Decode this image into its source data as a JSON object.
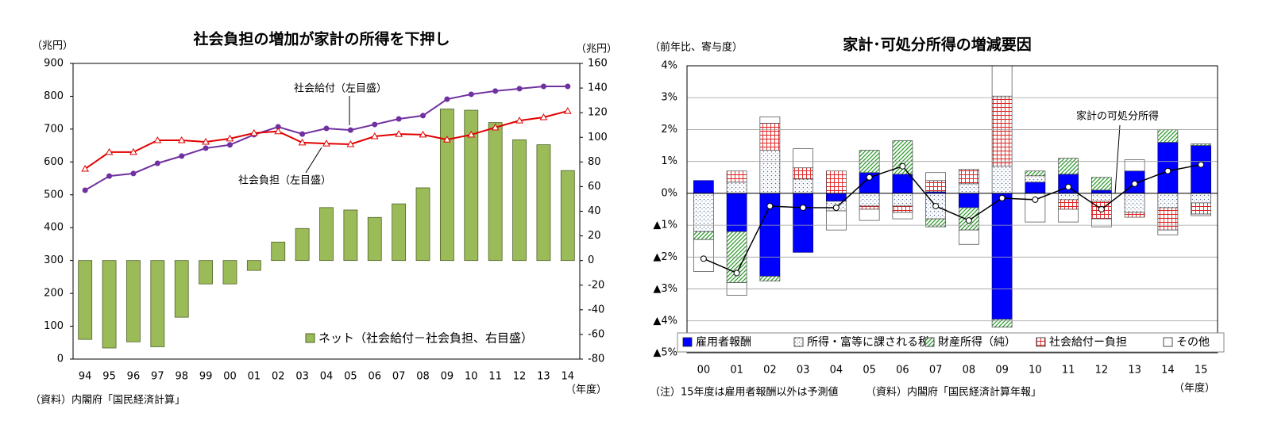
{
  "chart_data": [
    {
      "type": "combo",
      "title": "社会負担の増加が家計の所得を下押し",
      "y_unit": "（兆円）",
      "y2_unit": "（兆円）",
      "x_unit": "（年度）",
      "source": "（資料）内閣府「国民経済計算」",
      "categories": [
        "94",
        "95",
        "96",
        "97",
        "98",
        "99",
        "00",
        "01",
        "02",
        "03",
        "04",
        "05",
        "06",
        "07",
        "08",
        "09",
        "10",
        "11",
        "12",
        "13",
        "14"
      ],
      "ylim": [
        0,
        900
      ],
      "yticks": [
        0,
        100,
        200,
        300,
        400,
        500,
        600,
        700,
        800,
        900
      ],
      "y2lim": [
        -80,
        160
      ],
      "y2ticks": [
        -80,
        -60,
        -40,
        -20,
        0,
        20,
        40,
        60,
        80,
        100,
        120,
        140,
        160
      ],
      "legend": "bottom-right",
      "series": [
        {
          "name": "ネット（社会給付－社会負担、右目盛）",
          "type": "bar",
          "axis": "y2",
          "color": "#9bbb59",
          "values": [
            -64,
            -71,
            -66,
            -70,
            -46,
            -19,
            -19,
            -8,
            15,
            26,
            43,
            41,
            35,
            46,
            59,
            123,
            122,
            112,
            98,
            94,
            73
          ]
        },
        {
          "name": "社会給付（左目盛）",
          "type": "line",
          "marker": "circle",
          "color": "#7030a0",
          "values": [
            514,
            557,
            565,
            596,
            618,
            642,
            652,
            683,
            707,
            685,
            702,
            697,
            714,
            731,
            741,
            791,
            806,
            816,
            823,
            830,
            830
          ]
        },
        {
          "name": "社会負担（左目盛）",
          "type": "line",
          "marker": "triangle",
          "color": "#e00000",
          "values": [
            579,
            630,
            630,
            666,
            666,
            661,
            671,
            688,
            693,
            659,
            656,
            654,
            678,
            685,
            683,
            668,
            683,
            705,
            726,
            736,
            755
          ]
        }
      ]
    },
    {
      "type": "stacked_bar",
      "title": "家計･可処分所得の増減要因",
      "y_unit": "（前年比、寄与度）",
      "x_unit": "（年度）",
      "note": "（注）15年度は雇用者報酬以外は予測値",
      "source": "（資料）内閣府「国民経済計算年報」",
      "categories": [
        "00",
        "01",
        "02",
        "03",
        "04",
        "05",
        "06",
        "07",
        "08",
        "09",
        "10",
        "11",
        "12",
        "13",
        "14",
        "15"
      ],
      "ylim": [
        -5,
        4
      ],
      "yticks": [
        {
          "value": 4,
          "label": "4%"
        },
        {
          "value": 3,
          "label": "3%"
        },
        {
          "value": 2,
          "label": "2%"
        },
        {
          "value": 1,
          "label": "1%"
        },
        {
          "value": 0,
          "label": "0%"
        },
        {
          "value": -1,
          "label": "▲1%"
        },
        {
          "value": -2,
          "label": "▲2%"
        },
        {
          "value": -3,
          "label": "▲3%"
        },
        {
          "value": -4,
          "label": "▲4%"
        },
        {
          "value": -5,
          "label": "▲5%"
        }
      ],
      "grid": true,
      "legend": "bottom",
      "series": [
        {
          "name": "雇用者報酬",
          "pattern": "solid",
          "color": "#0000ff",
          "values": [
            0.4,
            -1.2,
            -2.6,
            -1.85,
            -0.25,
            0.65,
            0.6,
            0.05,
            -0.45,
            -3.95,
            0.35,
            0.6,
            0.1,
            0.7,
            1.6,
            1.5
          ]
        },
        {
          "name": "所得・富等に課される税",
          "pattern": "dots",
          "color": "#5a6f9a",
          "values": [
            -1.2,
            0.35,
            1.35,
            0.45,
            -0.3,
            -0.4,
            -0.4,
            -0.8,
            0.3,
            0.85,
            0.2,
            -0.2,
            -0.25,
            -0.6,
            -0.45,
            -0.3
          ]
        },
        {
          "name": "財産所得（純）",
          "pattern": "hatch",
          "color": "#2e9a2e",
          "values": [
            -0.25,
            -1.6,
            -0.15,
            0,
            0,
            0.7,
            1.05,
            -0.25,
            -0.7,
            -0.25,
            0.15,
            0.5,
            0.4,
            0,
            0.4,
            0.05
          ]
        },
        {
          "name": "社会給付ー負担",
          "pattern": "grid",
          "color": "#e02020",
          "values": [
            0,
            0.35,
            0.85,
            0.35,
            0.7,
            -0.1,
            -0.2,
            0.35,
            0.45,
            2.2,
            0,
            -0.3,
            -0.55,
            -0.15,
            -0.7,
            -0.35
          ]
        },
        {
          "name": "その他",
          "pattern": "none",
          "color": "#ffffff",
          "values": [
            -1.0,
            -0.4,
            0.2,
            0.6,
            -0.6,
            -0.35,
            -0.2,
            0.25,
            -0.45,
            1.0,
            -0.9,
            -0.4,
            -0.25,
            0.35,
            -0.15,
            -0.05
          ]
        }
      ],
      "line": {
        "name": "家計の可処分所得",
        "color": "#000000",
        "values": [
          -2.05,
          -2.5,
          -0.4,
          -0.45,
          -0.45,
          0.5,
          0.85,
          -0.4,
          -0.85,
          -0.15,
          -0.2,
          0.2,
          -0.5,
          0.3,
          0.7,
          0.9
        ]
      }
    }
  ]
}
